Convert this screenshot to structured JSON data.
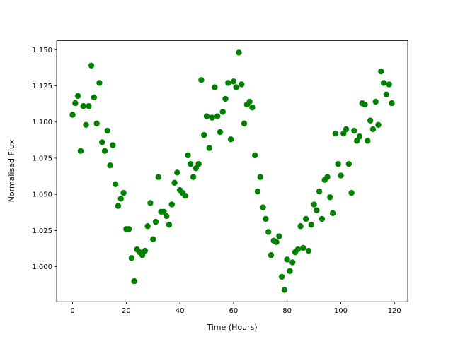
{
  "chart_data": {
    "type": "scatter",
    "xlabel": "Time (Hours)",
    "ylabel": "Normalised Flux",
    "color": "#008000",
    "x": [
      0,
      1,
      2,
      3,
      4,
      5,
      6,
      7,
      8,
      9,
      10,
      11,
      12,
      13,
      14,
      15,
      16,
      17,
      18,
      19,
      20,
      21,
      22,
      23,
      24,
      25,
      26,
      27,
      28,
      29,
      30,
      31,
      32,
      33,
      34,
      35,
      36,
      37,
      38,
      39,
      40,
      41,
      42,
      43,
      44,
      45,
      46,
      47,
      48,
      49,
      50,
      51,
      52,
      53,
      54,
      55,
      56,
      57,
      58,
      59,
      60,
      61,
      62,
      63,
      64,
      65,
      66,
      67,
      68,
      69,
      70,
      71,
      72,
      73,
      74,
      75,
      76,
      77,
      78,
      79,
      80,
      81,
      82,
      83,
      84,
      85,
      86,
      87,
      88,
      89,
      90,
      91,
      92,
      93,
      94,
      95,
      96,
      97,
      98,
      99,
      100,
      101,
      102,
      103,
      104,
      105,
      106,
      107,
      108,
      109,
      110,
      111,
      112,
      113,
      114,
      115,
      116,
      117,
      118,
      119
    ],
    "values": [
      1.105,
      1.113,
      1.118,
      1.08,
      1.111,
      1.098,
      1.111,
      1.139,
      1.117,
      1.099,
      1.127,
      1.086,
      1.08,
      1.094,
      1.07,
      1.084,
      1.057,
      1.042,
      1.047,
      1.051,
      1.026,
      1.026,
      1.006,
      0.99,
      1.012,
      1.01,
      1.008,
      1.011,
      1.028,
      1.044,
      1.019,
      1.031,
      1.062,
      1.038,
      1.038,
      1.035,
      1.029,
      1.043,
      1.058,
      1.065,
      1.053,
      1.051,
      1.049,
      1.077,
      1.071,
      1.062,
      1.068,
      1.071,
      1.129,
      1.091,
      1.104,
      1.082,
      1.103,
      1.124,
      1.104,
      1.093,
      1.107,
      1.116,
      1.127,
      1.088,
      1.128,
      1.124,
      1.148,
      1.126,
      1.099,
      1.112,
      1.114,
      1.11,
      1.077,
      1.052,
      1.062,
      1.041,
      1.033,
      1.024,
      1.008,
      1.018,
      1.017,
      1.021,
      0.993,
      0.984,
      1.005,
      0.997,
      1.003,
      1.01,
      1.012,
      1.028,
      1.013,
      1.033,
      1.011,
      1.029,
      1.043,
      1.039,
      1.052,
      1.033,
      1.06,
      1.062,
      1.048,
      1.037,
      1.092,
      1.071,
      1.063,
      1.092,
      1.095,
      1.071,
      1.051,
      1.094,
      1.087,
      1.09,
      1.113,
      1.112,
      1.087,
      1.101,
      1.095,
      1.114,
      1.098,
      1.135,
      1.127,
      1.119,
      1.126,
      1.113
    ],
    "xlim": [
      -5.95,
      124.95
    ],
    "xticks": [
      0,
      20,
      40,
      60,
      80,
      100,
      120
    ],
    "ylim": [
      0.9758,
      1.1562
    ],
    "yticks": [
      {
        "value": 1.0,
        "label": "1.000"
      },
      1.025,
      {
        "value": 1.05,
        "label": "1.050"
      },
      1.075,
      {
        "value": 1.1,
        "label": "1.100"
      },
      1.125,
      {
        "value": 1.15,
        "label": "1.150"
      }
    ]
  }
}
